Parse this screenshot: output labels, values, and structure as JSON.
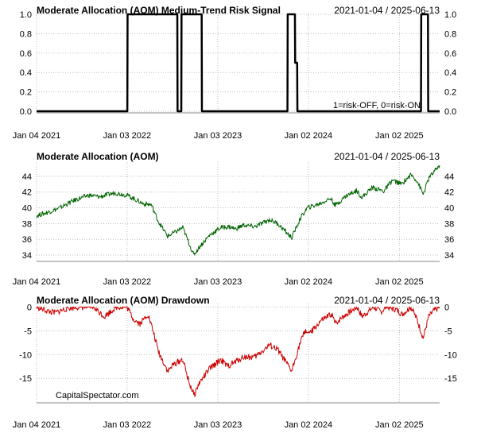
{
  "chart_data": [
    {
      "type": "line",
      "title": "Moderate Allocation (AOM) Medium-Trend Risk Signal",
      "date_range": "2021-01-04 / 2025-06-13",
      "annotation": "1=risk-OFF, 0=risk-ON",
      "x_tick_labels": [
        "Jan 04 2021",
        "Jan 03 2022",
        "Jan 03 2023",
        "Jan 02 2024",
        "Jan 02 2025"
      ],
      "y_ticks": [
        "0.0",
        "0.2",
        "0.4",
        "0.6",
        "0.8",
        "1.0"
      ],
      "ylim": [
        0,
        1
      ],
      "grid": true,
      "color": "#000000",
      "series": [
        {
          "x": [
            "2021-01-04",
            "2022-01-04",
            "2022-01-05",
            "2022-07-24",
            "2022-07-25",
            "2022-08-09",
            "2022-08-10",
            "2022-10-30",
            "2022-10-31",
            "2023-10-10",
            "2023-10-11",
            "2023-11-09",
            "2023-11-10",
            "2023-11-18",
            "2023-11-19",
            "2025-03-30",
            "2025-03-31",
            "2025-04-27",
            "2025-04-28",
            "2025-06-13"
          ],
          "values": [
            0,
            0,
            1,
            1,
            0,
            0,
            1,
            1,
            0,
            0,
            1,
            1,
            0.5,
            0.5,
            0,
            0,
            1,
            1,
            0,
            0
          ]
        }
      ]
    },
    {
      "type": "line",
      "title": "Moderate Allocation (AOM)",
      "date_range": "2021-01-04 / 2025-06-13",
      "x_tick_labels": [
        "Jan 04 2021",
        "Jan 03 2022",
        "Jan 03 2023",
        "Jan 02 2024",
        "Jan 02 2025"
      ],
      "y_ticks": [
        "34",
        "36",
        "38",
        "40",
        "42",
        "44"
      ],
      "ylim": [
        33.4,
        45.6
      ],
      "grid": true,
      "color": "#006400",
      "series": [
        {
          "x": [
            "2021-01-04",
            "2021-02-15",
            "2021-04-01",
            "2021-06-01",
            "2021-08-01",
            "2021-09-15",
            "2021-11-15",
            "2022-01-03",
            "2022-02-15",
            "2022-03-10",
            "2022-04-10",
            "2022-05-10",
            "2022-06-15",
            "2022-07-15",
            "2022-08-15",
            "2022-09-28",
            "2022-10-20",
            "2022-11-30",
            "2023-01-15",
            "2023-02-20",
            "2023-03-15",
            "2023-04-15",
            "2023-06-01",
            "2023-07-31",
            "2023-09-01",
            "2023-10-27",
            "2023-11-30",
            "2023-12-29",
            "2024-02-15",
            "2024-04-01",
            "2024-04-20",
            "2024-06-01",
            "2024-07-15",
            "2024-08-05",
            "2024-09-15",
            "2024-10-31",
            "2024-12-05",
            "2025-01-10",
            "2025-02-18",
            "2025-03-15",
            "2025-04-08",
            "2025-05-01",
            "2025-06-13"
          ],
          "values": [
            39.0,
            39.4,
            39.9,
            40.9,
            41.6,
            41.4,
            41.9,
            41.6,
            40.9,
            40.5,
            40.4,
            38.2,
            36.4,
            36.9,
            37.5,
            34.0,
            35.0,
            36.5,
            37.5,
            37.6,
            37.3,
            37.8,
            37.6,
            38.5,
            38.0,
            36.2,
            38.6,
            40.0,
            40.5,
            41.2,
            40.3,
            41.5,
            42.2,
            41.3,
            42.6,
            42.1,
            43.5,
            43.0,
            44.2,
            43.4,
            41.7,
            43.8,
            45.4
          ]
        }
      ]
    },
    {
      "type": "area",
      "title": "Moderate Allocation (AOM) Drawdown",
      "date_range": "2021-01-04 / 2025-06-13",
      "watermark": "CapitalSpectator.com",
      "x_tick_labels": [
        "Jan 04 2021",
        "Jan 03 2022",
        "Jan 03 2023",
        "Jan 02 2024",
        "Jan 02 2025"
      ],
      "y_ticks": [
        "0",
        "-5",
        "-10",
        "-15"
      ],
      "ylim": [
        -19.8,
        0.4
      ],
      "grid": true,
      "color": "#cc0000",
      "series": [
        {
          "x": [
            "2021-01-04",
            "2021-02-25",
            "2021-03-20",
            "2021-05-12",
            "2021-06-20",
            "2021-08-20",
            "2021-10-04",
            "2021-11-20",
            "2022-01-03",
            "2022-01-28",
            "2022-02-24",
            "2022-03-28",
            "2022-04-20",
            "2022-05-10",
            "2022-06-16",
            "2022-07-10",
            "2022-08-15",
            "2022-09-10",
            "2022-09-30",
            "2022-10-20",
            "2022-11-30",
            "2023-01-15",
            "2023-02-10",
            "2023-03-15",
            "2023-04-15",
            "2023-06-01",
            "2023-07-31",
            "2023-09-01",
            "2023-10-27",
            "2023-11-30",
            "2023-12-20",
            "2024-01-10",
            "2024-02-20",
            "2024-04-05",
            "2024-04-19",
            "2024-05-20",
            "2024-07-16",
            "2024-08-05",
            "2024-09-20",
            "2024-10-20",
            "2024-11-10",
            "2024-12-20",
            "2025-01-13",
            "2025-02-18",
            "2025-03-13",
            "2025-04-08",
            "2025-04-30",
            "2025-05-20",
            "2025-06-13"
          ],
          "values": [
            0.0,
            -1.0,
            -1.2,
            -0.2,
            0.0,
            0.0,
            -2.0,
            0.0,
            0.0,
            -2.5,
            -3.5,
            -1.5,
            -5.5,
            -9.5,
            -13.5,
            -12.0,
            -11.0,
            -16.0,
            -18.5,
            -16.0,
            -13.0,
            -11.0,
            -12.5,
            -11.5,
            -10.5,
            -10.5,
            -8.0,
            -9.0,
            -13.5,
            -7.5,
            -5.0,
            -5.5,
            -3.0,
            -1.5,
            -3.5,
            -2.0,
            0.0,
            -2.0,
            0.0,
            -1.0,
            0.0,
            -0.5,
            -1.5,
            0.0,
            -2.5,
            -6.5,
            -2.0,
            -0.8,
            0.0
          ]
        }
      ]
    }
  ]
}
